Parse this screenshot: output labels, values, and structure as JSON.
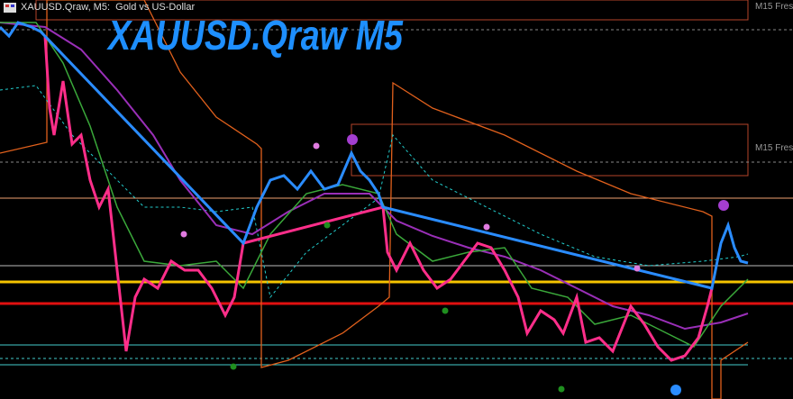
{
  "header": {
    "title": "XAUUSD.Qraw, M5:  Gold vs US-Dollar"
  },
  "overlay_label": "XAUUSD.Qraw M5",
  "zone_labels": [
    "M15 Fres",
    "M15 Fres"
  ]
}
